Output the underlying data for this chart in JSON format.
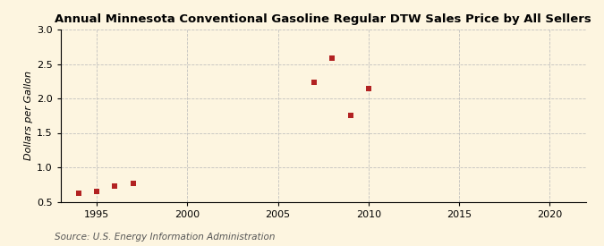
{
  "title": "Annual Minnesota Conventional Gasoline Regular DTW Sales Price by All Sellers",
  "ylabel": "Dollars per Gallon",
  "source": "Source: U.S. Energy Information Administration",
  "x_data": [
    1994,
    1995,
    1996,
    1997,
    2007,
    2008,
    2009,
    2010
  ],
  "y_data": [
    0.62,
    0.65,
    0.73,
    0.77,
    2.23,
    2.58,
    1.75,
    2.14
  ],
  "xlim": [
    1993,
    2022
  ],
  "ylim": [
    0.5,
    3.0
  ],
  "yticks": [
    0.5,
    1.0,
    1.5,
    2.0,
    2.5,
    3.0
  ],
  "xticks": [
    1995,
    2000,
    2005,
    2010,
    2015,
    2020
  ],
  "marker_color": "#b22222",
  "marker": "s",
  "marker_size": 4,
  "bg_color": "#fdf5e0",
  "grid_color": "#bbbbbb",
  "title_fontsize": 9.5,
  "label_fontsize": 8,
  "tick_fontsize": 8,
  "source_fontsize": 7.5
}
